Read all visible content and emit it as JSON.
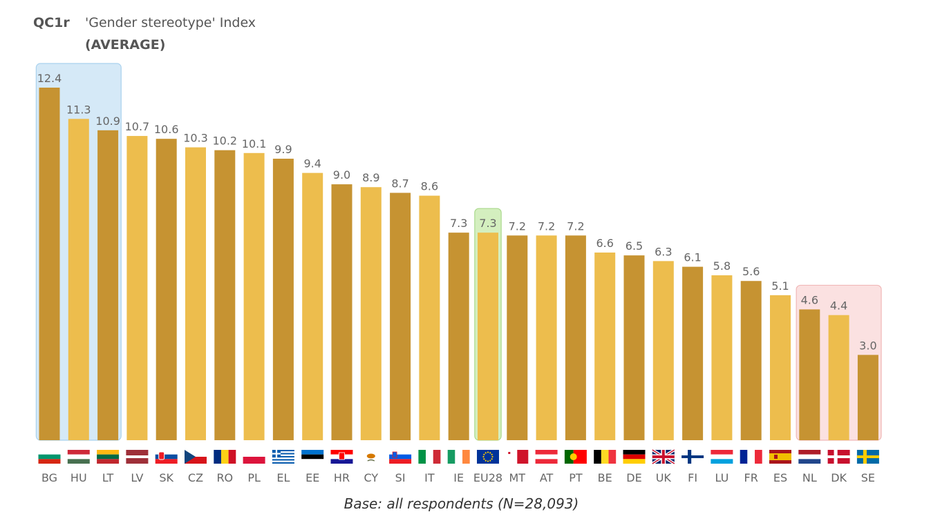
{
  "chart_data": {
    "type": "bar",
    "title_code": "QC1r",
    "title": "'Gender stereotype' Index",
    "subtitle": "(AVERAGE)",
    "categories": [
      "BG",
      "HU",
      "LT",
      "LV",
      "SK",
      "CZ",
      "RO",
      "PL",
      "EL",
      "EE",
      "HR",
      "CY",
      "SI",
      "IT",
      "IE",
      "EU28",
      "MT",
      "AT",
      "PT",
      "BE",
      "DE",
      "UK",
      "FI",
      "LU",
      "FR",
      "ES",
      "NL",
      "DK",
      "SE"
    ],
    "values": [
      12.4,
      11.3,
      10.9,
      10.7,
      10.6,
      10.3,
      10.2,
      10.1,
      9.9,
      9.4,
      9.0,
      8.9,
      8.7,
      8.6,
      7.3,
      7.3,
      7.2,
      7.2,
      7.2,
      6.6,
      6.5,
      6.3,
      6.1,
      5.8,
      5.6,
      5.1,
      4.6,
      4.4,
      3.0
    ],
    "value_labels": [
      "12.4",
      "11.3",
      "10.9",
      "10.7",
      "10.6",
      "10.3",
      "10.2",
      "10.1",
      "9.9",
      "9.4",
      "9.0",
      "8.9",
      "8.7",
      "8.6",
      "7.3",
      "7.3",
      "7.2",
      "7.2",
      "7.2",
      "6.6",
      "6.5",
      "6.3",
      "6.1",
      "5.8",
      "5.6",
      "5.1",
      "4.6",
      "4.4",
      "3.0"
    ],
    "ylim": [
      0,
      12.4
    ],
    "xlabel": "",
    "ylabel": "",
    "grid": false,
    "legend": "none",
    "colors": {
      "dark": "#c69332",
      "light": "#edbd4d"
    },
    "highlights": [
      {
        "group": "top",
        "categories": [
          "BG",
          "HU",
          "LT"
        ],
        "color": "#d5e9f7",
        "border": "#a9d2ee"
      },
      {
        "group": "average",
        "categories": [
          "EU28"
        ],
        "color": "#d4efbf",
        "border": "#a9d98b"
      },
      {
        "group": "bottom",
        "categories": [
          "NL",
          "DK",
          "SE"
        ],
        "color": "#fbe1e1",
        "border": "#f0b8b8"
      }
    ],
    "flags": [
      "flag-bg-icon",
      "flag-hu-icon",
      "flag-lt-icon",
      "flag-lv-icon",
      "flag-sk-icon",
      "flag-cz-icon",
      "flag-ro-icon",
      "flag-pl-icon",
      "flag-el-icon",
      "flag-ee-icon",
      "flag-hr-icon",
      "flag-cy-icon",
      "flag-si-icon",
      "flag-it-icon",
      "flag-ie-icon",
      "flag-eu-icon",
      "flag-mt-icon",
      "flag-at-icon",
      "flag-pt-icon",
      "flag-be-icon",
      "flag-de-icon",
      "flag-uk-icon",
      "flag-fi-icon",
      "flag-lu-icon",
      "flag-fr-icon",
      "flag-es-icon",
      "flag-nl-icon",
      "flag-dk-icon",
      "flag-se-icon"
    ]
  },
  "footer": {
    "base_note": "Base: all respondents (N=28,093)"
  }
}
